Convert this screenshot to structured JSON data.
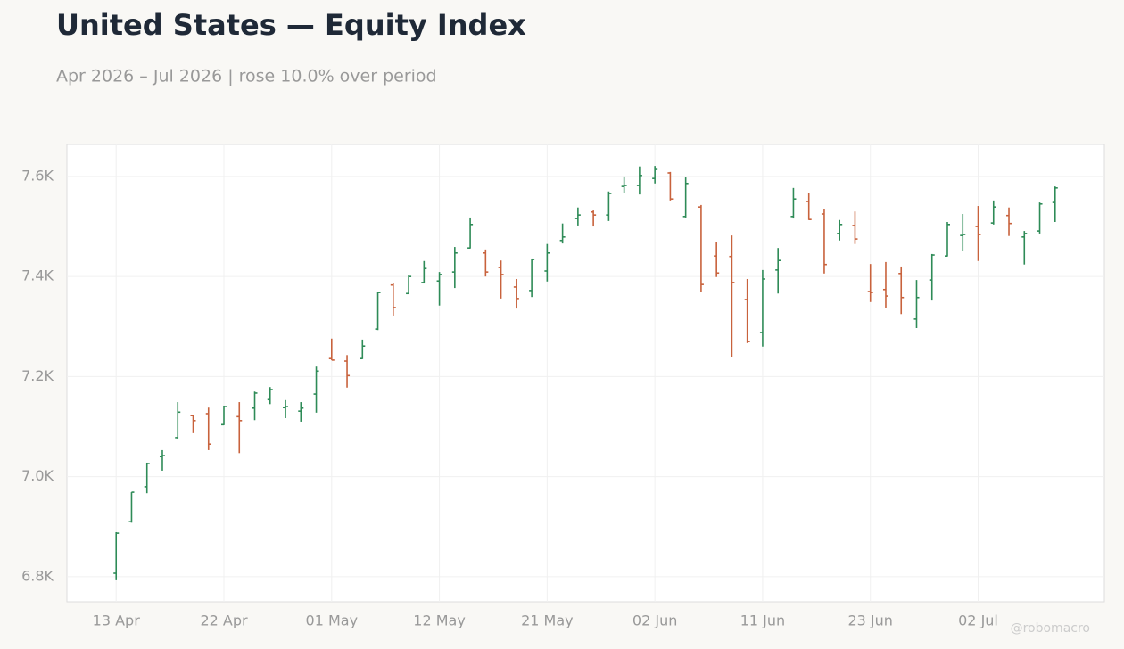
{
  "chart_data": {
    "type": "ohlc",
    "title": "United States — Equity Index",
    "subtitle": "Apr 2026 – Jul 2026 | rose 10.0% over period",
    "watermark": "@robomacro",
    "categories": [
      "13 Apr",
      null,
      null,
      null,
      null,
      null,
      null,
      "22 Apr",
      null,
      null,
      null,
      null,
      null,
      null,
      "01 May",
      null,
      null,
      null,
      null,
      null,
      null,
      "12 May",
      null,
      null,
      null,
      null,
      null,
      null,
      "21 May",
      null,
      null,
      null,
      null,
      null,
      null,
      "02 Jun",
      null,
      null,
      null,
      null,
      null,
      null,
      "11 Jun",
      null,
      null,
      null,
      null,
      null,
      null,
      "23 Jun",
      null,
      null,
      null,
      null,
      null,
      null,
      "02 Jul",
      null,
      null,
      null,
      null,
      null
    ],
    "open": [
      6807,
      6910,
      6980,
      7040,
      7078,
      7122,
      7126,
      7104,
      7120,
      7137,
      7154,
      7138,
      7131,
      7165,
      7236,
      7231,
      7236,
      7295,
      7383,
      7366,
      7388,
      7391,
      7409,
      7457,
      7447,
      7418,
      7379,
      7372,
      7411,
      7472,
      7516,
      7529,
      7523,
      7580,
      7582,
      7596,
      7607,
      7520,
      7539,
      7441,
      7440,
      7354,
      7288,
      7413,
      7520,
      7550,
      7525,
      7486,
      7502,
      7370,
      7374,
      7406,
      7315,
      7393,
      7441,
      7482,
      7500,
      7507,
      7522,
      7479,
      7491,
      7548
    ],
    "high": [
      6889,
      6969,
      7028,
      7053,
      7149,
      7124,
      7138,
      7142,
      7149,
      7170,
      7179,
      7153,
      7149,
      7220,
      7276,
      7243,
      7274,
      7370,
      7386,
      7402,
      7431,
      7409,
      7459,
      7518,
      7454,
      7432,
      7395,
      7436,
      7465,
      7506,
      7538,
      7532,
      7570,
      7600,
      7620,
      7621,
      7609,
      7598,
      7543,
      7468,
      7482,
      7395,
      7413,
      7457,
      7577,
      7566,
      7534,
      7513,
      7530,
      7425,
      7429,
      7420,
      7393,
      7445,
      7509,
      7525,
      7541,
      7552,
      7538,
      7491,
      7548,
      7580
    ],
    "low": [
      6793,
      6908,
      6967,
      7012,
      7076,
      7087,
      7053,
      7103,
      7047,
      7113,
      7145,
      7117,
      7110,
      7128,
      7233,
      7178,
      7235,
      7293,
      7322,
      7365,
      7386,
      7342,
      7377,
      7456,
      7400,
      7356,
      7336,
      7359,
      7390,
      7466,
      7502,
      7500,
      7511,
      7566,
      7564,
      7586,
      7552,
      7518,
      7370,
      7399,
      7240,
      7267,
      7260,
      7366,
      7516,
      7513,
      7406,
      7472,
      7465,
      7349,
      7338,
      7325,
      7297,
      7352,
      7440,
      7452,
      7431,
      7504,
      7481,
      7424,
      7486,
      7509
    ],
    "close": [
      6887,
      6969,
      7026,
      7042,
      7129,
      7112,
      7065,
      7140,
      7112,
      7167,
      7174,
      7140,
      7137,
      7211,
      7233,
      7202,
      7261,
      7368,
      7338,
      7400,
      7416,
      7404,
      7447,
      7504,
      7409,
      7404,
      7356,
      7434,
      7447,
      7479,
      7523,
      7523,
      7566,
      7582,
      7602,
      7614,
      7555,
      7586,
      7384,
      7407,
      7388,
      7270,
      7395,
      7432,
      7555,
      7514,
      7424,
      7504,
      7475,
      7368,
      7361,
      7358,
      7358,
      7443,
      7504,
      7484,
      7484,
      7539,
      7506,
      7486,
      7545,
      7577
    ],
    "up_color": "#2e8b57",
    "down_color": "#c8623c",
    "ylim": [
      6750,
      7664
    ],
    "yticks": [
      {
        "value": 6800,
        "label": "6.8K"
      },
      {
        "value": 7000,
        "label": "7.0K"
      },
      {
        "value": 7200,
        "label": "7.2K"
      },
      {
        "value": 7400,
        "label": "7.4K"
      },
      {
        "value": 7600,
        "label": "7.6K"
      }
    ],
    "grid": true
  }
}
